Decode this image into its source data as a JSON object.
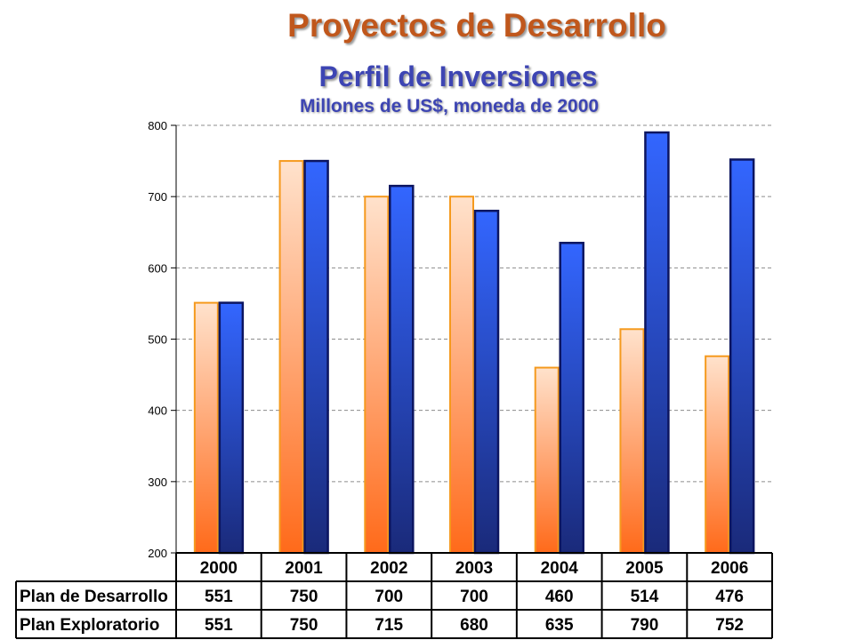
{
  "title": "Proyectos de Desarrollo",
  "subtitle": "Perfil de Inversiones",
  "units": "Millones de US$, moneda de 2000",
  "chart_data": {
    "type": "bar",
    "categories": [
      "2000",
      "2001",
      "2002",
      "2003",
      "2004",
      "2005",
      "2006"
    ],
    "series": [
      {
        "name": "Plan de Desarrollo",
        "values": [
          551,
          750,
          700,
          700,
          460,
          514,
          476
        ],
        "color": "#ff6a1a"
      },
      {
        "name": "Plan Exploratorio",
        "values": [
          551,
          750,
          715,
          680,
          635,
          790,
          752
        ],
        "color": "#3366ff"
      }
    ],
    "ylim": [
      200,
      800
    ],
    "yticks": [
      "200",
      "300",
      "400",
      "500",
      "600",
      "700",
      "800"
    ],
    "grid": true,
    "data_table": true
  },
  "colors": {
    "orange_light": "#ffe2cc",
    "orange_dark": "#ff6a1a",
    "orange_stroke": "#f59a1e",
    "blue_light": "#3366ff",
    "blue_dark": "#1a2a7a",
    "blue_stroke": "#0c1560"
  }
}
